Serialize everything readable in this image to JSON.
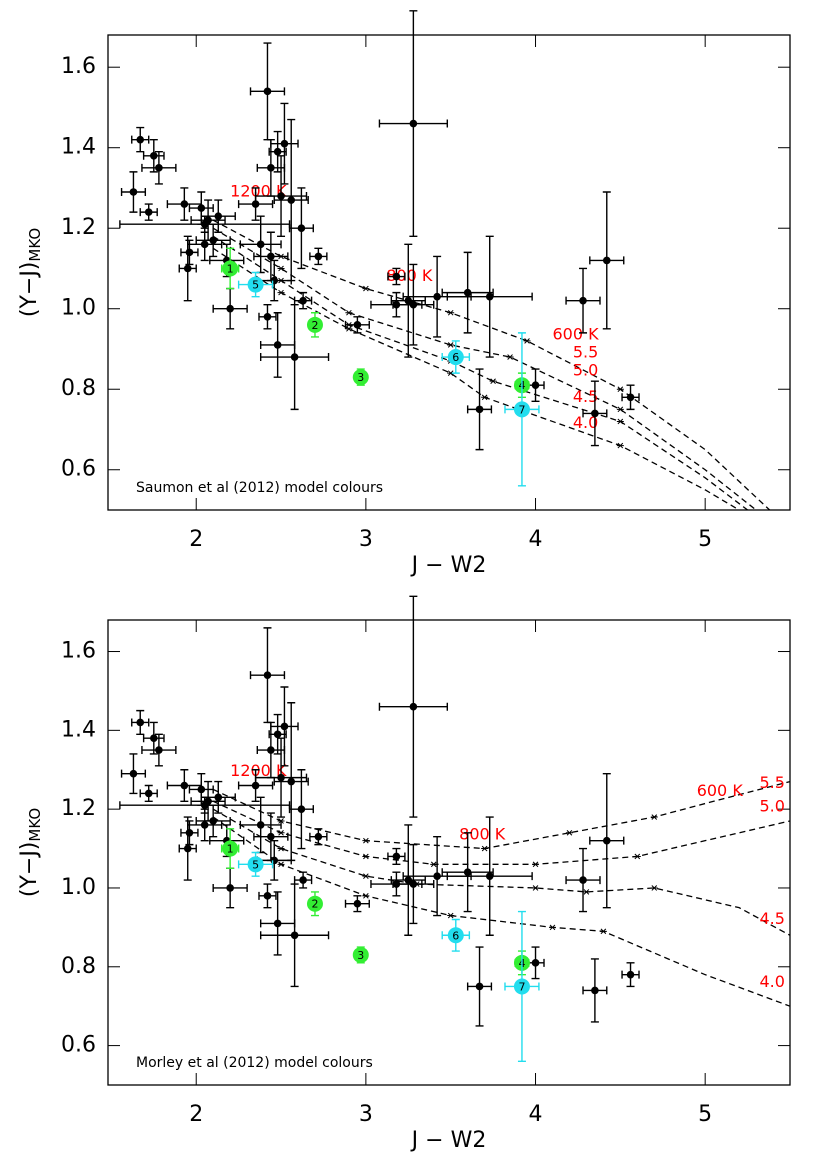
{
  "chart_data": [
    {
      "type": "scatter",
      "note": "Saumon et al (2012) model colours",
      "x_label": "J − W2",
      "y_label": "(Y−J)",
      "y_label_sub": "MKO",
      "xlim": [
        1.48,
        5.5
      ],
      "ylim": [
        0.5,
        1.68
      ],
      "xticks": [
        2,
        3,
        4,
        5
      ],
      "yticks": [
        0.6,
        0.8,
        {
          "value": 1,
          "label": "1.0"
        },
        1.2,
        1.4,
        1.6
      ],
      "series": [
        {
          "color": "#000000",
          "x": [
            1.67,
            1.75,
            1.78,
            1.63,
            1.72,
            1.93,
            1.95,
            1.96,
            2.03,
            2.07,
            2.05,
            2.1,
            2.13,
            2.18,
            2.2,
            2.05,
            2.35,
            2.42,
            2.44,
            2.48,
            2.52,
            2.5,
            2.56,
            2.62,
            2.44,
            2.38,
            2.46,
            2.42,
            2.48,
            2.58,
            2.63,
            2.72,
            2.95,
            3.28,
            3.18,
            3.18,
            3.25,
            3.28,
            3.42,
            3.6,
            3.73,
            3.67,
            4.0,
            4.28,
            4.42,
            4.35,
            4.56
          ],
          "values": [
            1.42,
            1.38,
            1.35,
            1.29,
            1.24,
            1.26,
            1.1,
            1.14,
            1.25,
            1.22,
            1.16,
            1.17,
            1.23,
            1.12,
            1.0,
            1.21,
            1.26,
            1.54,
            1.35,
            1.39,
            1.41,
            1.28,
            1.27,
            1.2,
            1.13,
            1.16,
            1.07,
            0.98,
            0.91,
            0.88,
            1.02,
            1.13,
            0.96,
            1.46,
            1.08,
            1.01,
            1.02,
            1.01,
            1.03,
            1.04,
            1.03,
            0.75,
            0.81,
            1.02,
            1.12,
            0.74,
            0.78
          ],
          "xerr": [
            0.05,
            0.06,
            0.1,
            0.07,
            0.05,
            0.1,
            0.05,
            0.05,
            0.07,
            0.1,
            0.1,
            0.1,
            0.1,
            0.1,
            0.1,
            0.5,
            0.1,
            0.1,
            0.08,
            0.05,
            0.08,
            0.15,
            0.1,
            0.07,
            0.1,
            0.12,
            0.1,
            0.05,
            0.1,
            0.2,
            0.05,
            0.05,
            0.07,
            0.2,
            0.05,
            0.15,
            0.1,
            0.12,
            0.2,
            0.15,
            0.25,
            0.07,
            0.05,
            0.1,
            0.1,
            0.07,
            0.05
          ],
          "yerr": [
            0.03,
            0.04,
            0.04,
            0.05,
            0.02,
            0.04,
            0.08,
            0.03,
            0.04,
            0.05,
            0.04,
            0.04,
            0.04,
            0.04,
            0.05,
            0.02,
            0.04,
            0.12,
            0.07,
            0.05,
            0.1,
            0.1,
            0.2,
            0.1,
            0.06,
            0.07,
            0.05,
            0.03,
            0.08,
            0.13,
            0.02,
            0.02,
            0.02,
            0.28,
            0.02,
            0.03,
            0.14,
            0.1,
            0.1,
            0.1,
            0.15,
            0.1,
            0.04,
            0.08,
            0.17,
            0.08,
            0.03
          ]
        },
        {
          "color": "#33ee33",
          "x": [
            2.2,
            2.7,
            2.97,
            3.92
          ],
          "values": [
            1.1,
            0.96,
            0.83,
            0.81
          ],
          "xerr": [
            0.05,
            0.03,
            0.02,
            0.04
          ],
          "yerr": [
            0.05,
            0.03,
            0.02,
            0.03
          ],
          "point_labels": [
            "1",
            "2",
            "3",
            "4"
          ]
        },
        {
          "color": "#22ddee",
          "x": [
            2.35,
            3.53,
            3.92
          ],
          "values": [
            1.06,
            0.88,
            0.75
          ],
          "xerr": [
            0.1,
            0.08,
            0.1
          ],
          "yerr": [
            0.03,
            0.04,
            0.19
          ],
          "point_labels": [
            "5",
            "6",
            "7"
          ]
        }
      ],
      "model_color": "#ff0000",
      "temperature_labels": [
        "1200 K",
        "800 K",
        "600 K"
      ],
      "models": [
        {
          "label": "5.5",
          "x": [
            2.1,
            2.5,
            3.0,
            3.5,
            3.95,
            4.5,
            5.0,
            5.38
          ],
          "values": [
            1.22,
            1.13,
            1.05,
            0.99,
            0.92,
            0.8,
            0.65,
            0.5
          ]
        },
        {
          "label": "5.0",
          "x": [
            2.1,
            2.5,
            2.9,
            3.5,
            3.85,
            4.5,
            5.0,
            5.3
          ],
          "values": [
            1.2,
            1.1,
            0.99,
            0.91,
            0.88,
            0.75,
            0.6,
            0.5
          ]
        },
        {
          "label": "4.5",
          "x": [
            2.1,
            2.5,
            2.9,
            3.5,
            3.75,
            4.5,
            5.0,
            5.25
          ],
          "values": [
            1.18,
            1.07,
            0.96,
            0.87,
            0.82,
            0.72,
            0.58,
            0.5
          ]
        },
        {
          "label": "4.0",
          "x": [
            2.1,
            2.5,
            2.9,
            3.5,
            3.7,
            4.5,
            5.0,
            5.2
          ],
          "values": [
            1.15,
            1.04,
            0.95,
            0.84,
            0.78,
            0.66,
            0.55,
            0.5
          ]
        }
      ]
    },
    {
      "type": "scatter",
      "note": "Morley et al (2012) model colours",
      "x_label": "J − W2",
      "y_label": "(Y−J)",
      "y_label_sub": "MKO",
      "xlim": [
        1.48,
        5.5
      ],
      "ylim": [
        0.5,
        1.68
      ],
      "xticks": [
        2,
        3,
        4,
        5
      ],
      "yticks": [
        0.6,
        0.8,
        {
          "value": 1,
          "label": "1.0"
        },
        1.2,
        1.4,
        1.6
      ],
      "series": [
        {
          "color": "#000000",
          "x": [
            1.67,
            1.75,
            1.78,
            1.63,
            1.72,
            1.93,
            1.95,
            1.96,
            2.03,
            2.07,
            2.05,
            2.1,
            2.13,
            2.18,
            2.2,
            2.05,
            2.35,
            2.42,
            2.44,
            2.48,
            2.52,
            2.5,
            2.56,
            2.62,
            2.44,
            2.38,
            2.46,
            2.42,
            2.48,
            2.58,
            2.63,
            2.72,
            2.95,
            3.28,
            3.18,
            3.18,
            3.25,
            3.28,
            3.42,
            3.6,
            3.73,
            3.67,
            4.0,
            4.28,
            4.42,
            4.35,
            4.56
          ],
          "values": [
            1.42,
            1.38,
            1.35,
            1.29,
            1.24,
            1.26,
            1.1,
            1.14,
            1.25,
            1.22,
            1.16,
            1.17,
            1.23,
            1.12,
            1.0,
            1.21,
            1.26,
            1.54,
            1.35,
            1.39,
            1.41,
            1.28,
            1.27,
            1.2,
            1.13,
            1.16,
            1.07,
            0.98,
            0.91,
            0.88,
            1.02,
            1.13,
            0.96,
            1.46,
            1.08,
            1.01,
            1.02,
            1.01,
            1.03,
            1.04,
            1.03,
            0.75,
            0.81,
            1.02,
            1.12,
            0.74,
            0.78
          ],
          "xerr": [
            0.05,
            0.06,
            0.1,
            0.07,
            0.05,
            0.1,
            0.05,
            0.05,
            0.07,
            0.1,
            0.1,
            0.1,
            0.1,
            0.1,
            0.1,
            0.5,
            0.1,
            0.1,
            0.08,
            0.05,
            0.08,
            0.15,
            0.1,
            0.07,
            0.1,
            0.12,
            0.1,
            0.05,
            0.1,
            0.2,
            0.05,
            0.05,
            0.07,
            0.2,
            0.05,
            0.15,
            0.1,
            0.12,
            0.2,
            0.15,
            0.25,
            0.07,
            0.05,
            0.1,
            0.1,
            0.07,
            0.05
          ],
          "yerr": [
            0.03,
            0.04,
            0.04,
            0.05,
            0.02,
            0.04,
            0.08,
            0.03,
            0.04,
            0.05,
            0.04,
            0.04,
            0.04,
            0.04,
            0.05,
            0.02,
            0.04,
            0.12,
            0.07,
            0.05,
            0.1,
            0.1,
            0.2,
            0.1,
            0.06,
            0.07,
            0.05,
            0.03,
            0.08,
            0.13,
            0.02,
            0.02,
            0.02,
            0.28,
            0.02,
            0.03,
            0.14,
            0.1,
            0.1,
            0.1,
            0.15,
            0.1,
            0.04,
            0.08,
            0.17,
            0.08,
            0.03
          ]
        },
        {
          "color": "#33ee33",
          "x": [
            2.2,
            2.7,
            2.97,
            3.92
          ],
          "values": [
            1.1,
            0.96,
            0.83,
            0.81
          ],
          "xerr": [
            0.05,
            0.03,
            0.02,
            0.04
          ],
          "yerr": [
            0.05,
            0.03,
            0.02,
            0.03
          ],
          "point_labels": [
            "1",
            "2",
            "3",
            "4"
          ]
        },
        {
          "color": "#22ddee",
          "x": [
            2.35,
            3.53,
            3.92
          ],
          "values": [
            1.06,
            0.88,
            0.75
          ],
          "xerr": [
            0.1,
            0.08,
            0.1
          ],
          "yerr": [
            0.03,
            0.04,
            0.19
          ],
          "point_labels": [
            "5",
            "6",
            "7"
          ]
        }
      ],
      "model_color": "#ff0000",
      "temperature_labels": [
        "1200 K",
        "800 K",
        "600 K"
      ],
      "models": [
        {
          "label": "5.5",
          "x": [
            2.1,
            2.5,
            3.0,
            3.7,
            4.2,
            4.7,
            5.05,
            5.5
          ],
          "values": [
            1.25,
            1.17,
            1.12,
            1.1,
            1.14,
            1.18,
            1.22,
            1.27
          ]
        },
        {
          "label": "5.0",
          "x": [
            2.1,
            2.5,
            3.0,
            3.4,
            4.0,
            4.6,
            5.0,
            5.5
          ],
          "values": [
            1.22,
            1.14,
            1.08,
            1.06,
            1.06,
            1.08,
            1.12,
            1.17
          ]
        },
        {
          "label": "4.5",
          "x": [
            2.1,
            2.5,
            3.0,
            3.3,
            4.0,
            4.3,
            4.7,
            5.2,
            5.5
          ],
          "values": [
            1.2,
            1.1,
            1.03,
            1.01,
            1.0,
            0.99,
            1.0,
            0.95,
            0.88
          ]
        },
        {
          "label": "4.0",
          "x": [
            2.1,
            2.5,
            3.0,
            3.5,
            4.1,
            4.4,
            5.0,
            5.5
          ],
          "values": [
            1.18,
            1.06,
            0.98,
            0.93,
            0.9,
            0.89,
            0.78,
            0.7
          ]
        }
      ]
    }
  ]
}
